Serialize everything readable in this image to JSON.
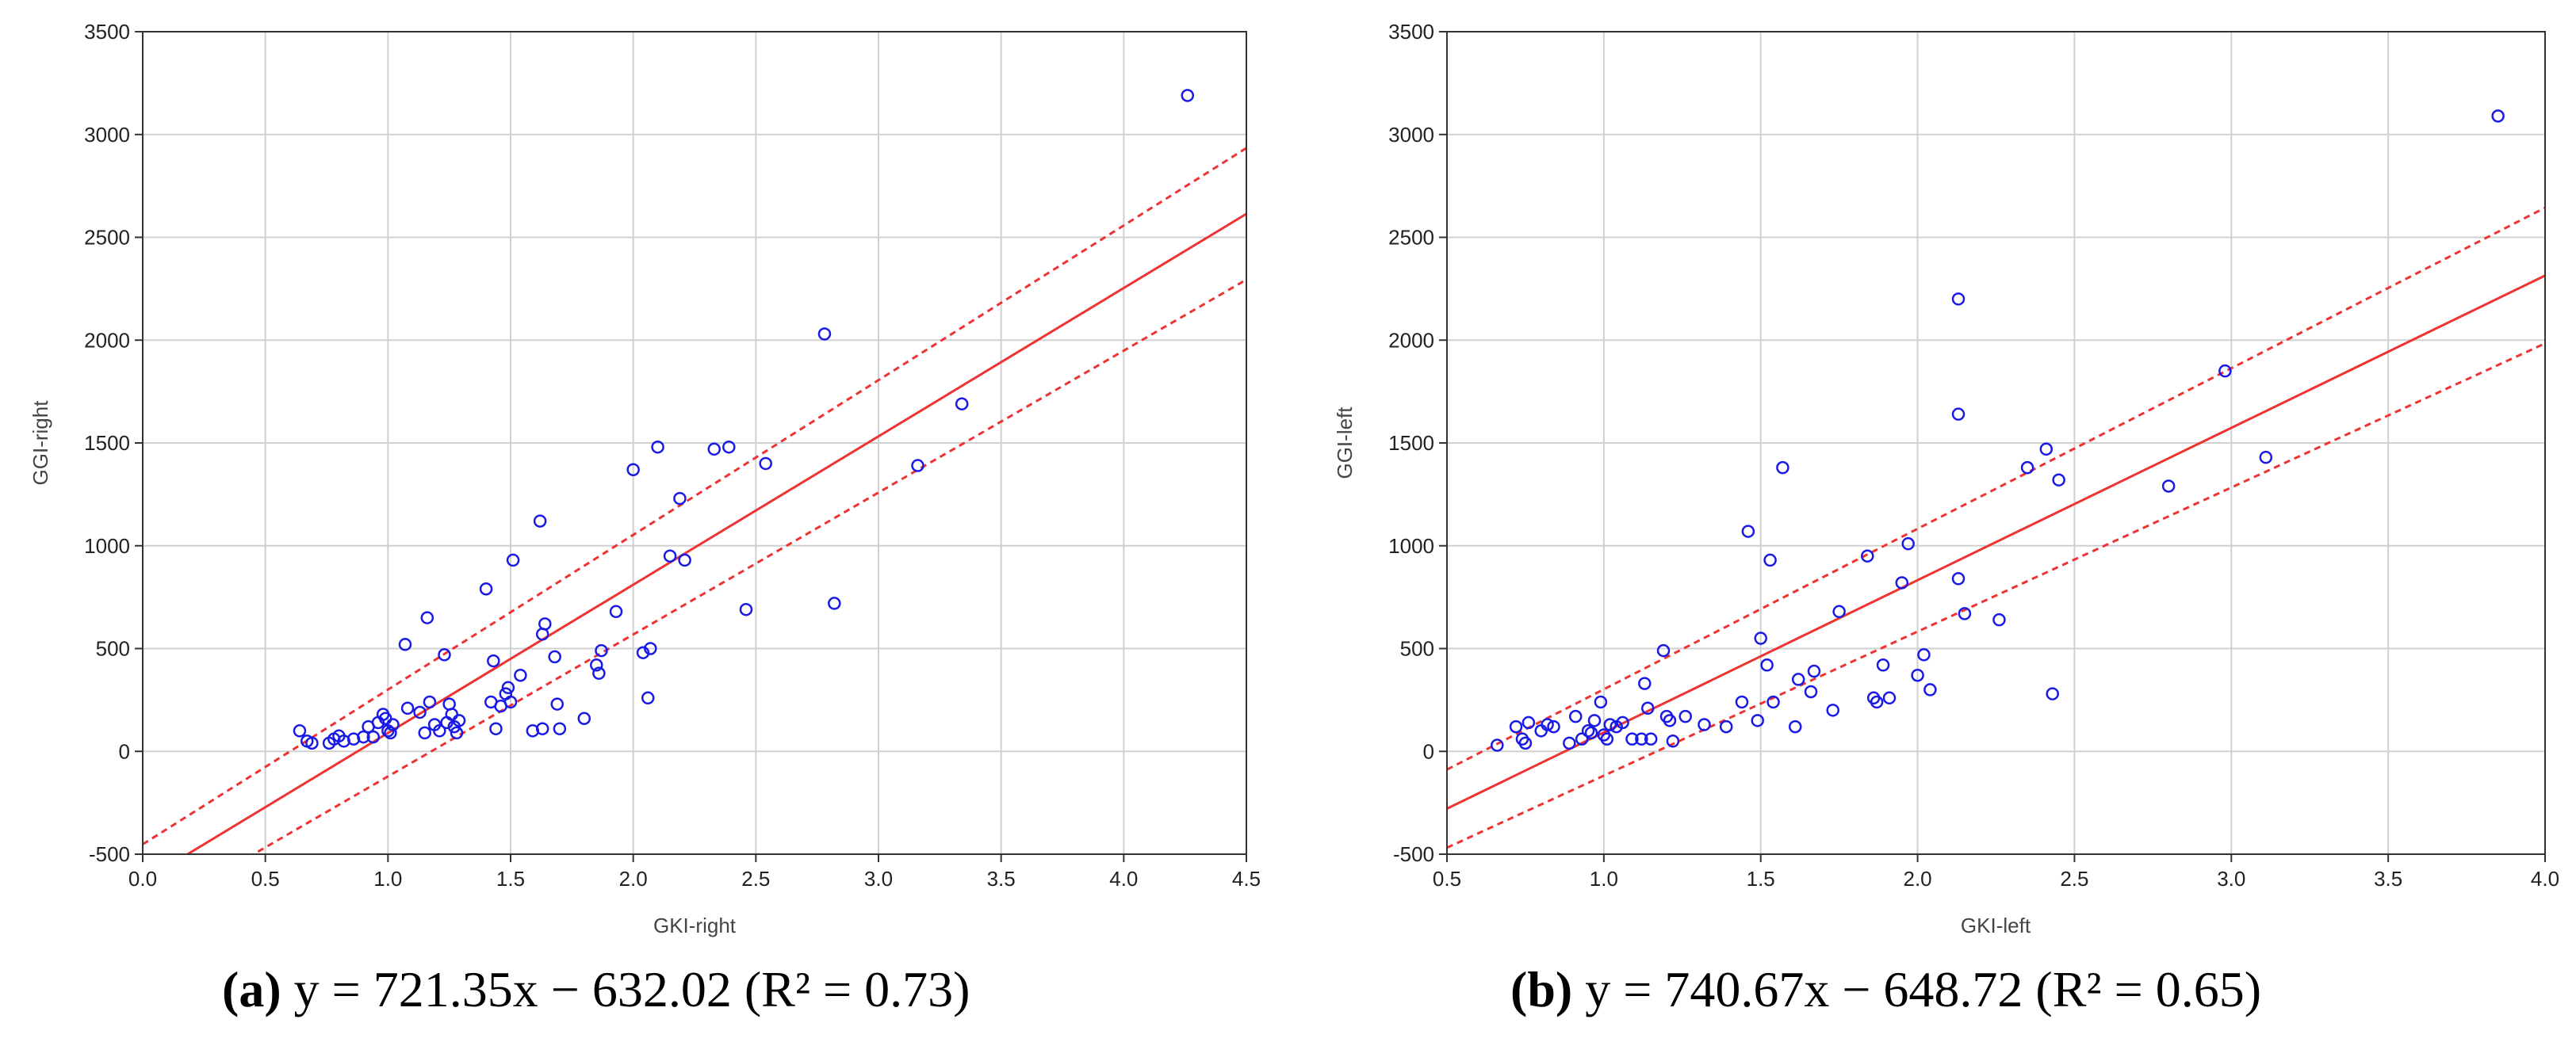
{
  "chart_data": [
    {
      "type": "scatter",
      "panel": "a",
      "xlabel": "GKI-right",
      "ylabel": "GGI-right",
      "xlim": [
        0.0,
        4.5
      ],
      "ylim": [
        -500,
        3500
      ],
      "xticks": [
        0.0,
        0.5,
        1.0,
        1.5,
        2.0,
        2.5,
        3.0,
        3.5,
        4.0,
        4.5
      ],
      "xtick_labels": [
        "0.0",
        "0.5",
        "1.0",
        "1.5",
        "2.0",
        "2.5",
        "3.0",
        "3.5",
        "4.0",
        "4.5"
      ],
      "yticks": [
        -500,
        0,
        500,
        1000,
        1500,
        2000,
        2500,
        3000,
        3500
      ],
      "ytick_labels": [
        "-500",
        "0",
        "500",
        "1000",
        "1500",
        "2000",
        "2500",
        "3000",
        "3500"
      ],
      "grid": true,
      "caption_letter": "(a)",
      "caption_equation": " y = 721.35x − 632.02 (R² = 0.73)",
      "fit": {
        "slope": 721.35,
        "intercept": -632.02,
        "r2": 0.73,
        "band_offset_start": 180,
        "band_offset_end": 320
      },
      "points": [
        [
          0.64,
          100
        ],
        [
          0.67,
          50
        ],
        [
          0.69,
          40
        ],
        [
          0.76,
          40
        ],
        [
          0.78,
          60
        ],
        [
          0.8,
          75
        ],
        [
          0.82,
          50
        ],
        [
          0.86,
          60
        ],
        [
          0.9,
          70
        ],
        [
          0.92,
          120
        ],
        [
          0.94,
          70
        ],
        [
          0.96,
          140
        ],
        [
          0.98,
          180
        ],
        [
          0.99,
          160
        ],
        [
          1.0,
          100
        ],
        [
          1.01,
          90
        ],
        [
          1.02,
          130
        ],
        [
          1.07,
          520
        ],
        [
          1.08,
          210
        ],
        [
          1.13,
          190
        ],
        [
          1.15,
          90
        ],
        [
          1.16,
          650
        ],
        [
          1.17,
          240
        ],
        [
          1.19,
          130
        ],
        [
          1.21,
          100
        ],
        [
          1.23,
          470
        ],
        [
          1.24,
          140
        ],
        [
          1.25,
          230
        ],
        [
          1.26,
          180
        ],
        [
          1.27,
          120
        ],
        [
          1.28,
          90
        ],
        [
          1.29,
          150
        ],
        [
          1.4,
          790
        ],
        [
          1.42,
          240
        ],
        [
          1.43,
          440
        ],
        [
          1.44,
          110
        ],
        [
          1.46,
          220
        ],
        [
          1.48,
          280
        ],
        [
          1.49,
          310
        ],
        [
          1.5,
          240
        ],
        [
          1.51,
          930
        ],
        [
          1.54,
          370
        ],
        [
          1.59,
          100
        ],
        [
          1.62,
          1120
        ],
        [
          1.63,
          110
        ],
        [
          1.63,
          570
        ],
        [
          1.64,
          620
        ],
        [
          1.68,
          460
        ],
        [
          1.69,
          230
        ],
        [
          1.7,
          110
        ],
        [
          1.8,
          160
        ],
        [
          1.85,
          420
        ],
        [
          1.86,
          380
        ],
        [
          1.87,
          490
        ],
        [
          1.93,
          680
        ],
        [
          2.0,
          1370
        ],
        [
          2.04,
          480
        ],
        [
          2.06,
          260
        ],
        [
          2.07,
          500
        ],
        [
          2.1,
          1480
        ],
        [
          2.15,
          950
        ],
        [
          2.19,
          1230
        ],
        [
          2.21,
          930
        ],
        [
          2.33,
          1470
        ],
        [
          2.39,
          1480
        ],
        [
          2.46,
          690
        ],
        [
          2.54,
          1400
        ],
        [
          2.78,
          2030
        ],
        [
          2.82,
          720
        ],
        [
          3.16,
          1390
        ],
        [
          3.34,
          1690
        ],
        [
          4.26,
          3190
        ]
      ]
    },
    {
      "type": "scatter",
      "panel": "b",
      "xlabel": "GKI-left",
      "ylabel": "GGI-left",
      "xlim": [
        0.5,
        4.0
      ],
      "ylim": [
        -500,
        3500
      ],
      "xticks": [
        0.5,
        1.0,
        1.5,
        2.0,
        2.5,
        3.0,
        3.5,
        4.0
      ],
      "xtick_labels": [
        "0.5",
        "1.0",
        "1.5",
        "2.0",
        "2.5",
        "3.0",
        "3.5",
        "4.0"
      ],
      "yticks": [
        -500,
        0,
        500,
        1000,
        1500,
        2000,
        2500,
        3000,
        3500
      ],
      "ytick_labels": [
        "-500",
        "0",
        "500",
        "1000",
        "1500",
        "2000",
        "2500",
        "3000",
        "3500"
      ],
      "grid": true,
      "caption_letter": "(b)",
      "caption_equation": " y = 740.67x − 648.72 (R² = 0.65)",
      "fit": {
        "slope": 740.67,
        "intercept": -648.72,
        "r2": 0.65,
        "band_offset_start": 190,
        "band_offset_end": 330
      },
      "points": [
        [
          0.66,
          30
        ],
        [
          0.72,
          120
        ],
        [
          0.74,
          60
        ],
        [
          0.75,
          40
        ],
        [
          0.76,
          140
        ],
        [
          0.8,
          100
        ],
        [
          0.82,
          130
        ],
        [
          0.84,
          120
        ],
        [
          0.89,
          40
        ],
        [
          0.91,
          170
        ],
        [
          0.93,
          60
        ],
        [
          0.95,
          100
        ],
        [
          0.96,
          90
        ],
        [
          0.97,
          150
        ],
        [
          0.99,
          240
        ],
        [
          1.0,
          80
        ],
        [
          1.01,
          60
        ],
        [
          1.02,
          130
        ],
        [
          1.04,
          120
        ],
        [
          1.06,
          140
        ],
        [
          1.09,
          60
        ],
        [
          1.12,
          60
        ],
        [
          1.13,
          330
        ],
        [
          1.14,
          210
        ],
        [
          1.15,
          60
        ],
        [
          1.19,
          490
        ],
        [
          1.2,
          170
        ],
        [
          1.21,
          150
        ],
        [
          1.22,
          50
        ],
        [
          1.26,
          170
        ],
        [
          1.32,
          130
        ],
        [
          1.39,
          120
        ],
        [
          1.44,
          240
        ],
        [
          1.46,
          1070
        ],
        [
          1.49,
          150
        ],
        [
          1.5,
          550
        ],
        [
          1.52,
          420
        ],
        [
          1.53,
          930
        ],
        [
          1.54,
          240
        ],
        [
          1.57,
          1380
        ],
        [
          1.61,
          120
        ],
        [
          1.62,
          350
        ],
        [
          1.66,
          290
        ],
        [
          1.67,
          390
        ],
        [
          1.73,
          200
        ],
        [
          1.75,
          680
        ],
        [
          1.84,
          950
        ],
        [
          1.86,
          260
        ],
        [
          1.87,
          240
        ],
        [
          1.89,
          420
        ],
        [
          1.91,
          260
        ],
        [
          1.95,
          820
        ],
        [
          1.97,
          1010
        ],
        [
          2.0,
          370
        ],
        [
          2.02,
          470
        ],
        [
          2.04,
          300
        ],
        [
          2.13,
          1640
        ],
        [
          2.13,
          2200
        ],
        [
          2.13,
          840
        ],
        [
          2.15,
          670
        ],
        [
          2.26,
          640
        ],
        [
          2.35,
          1380
        ],
        [
          2.41,
          1470
        ],
        [
          2.43,
          280
        ],
        [
          2.45,
          1320
        ],
        [
          2.8,
          1290
        ],
        [
          2.98,
          1850
        ],
        [
          3.11,
          1430
        ],
        [
          3.85,
          3090
        ]
      ]
    }
  ]
}
